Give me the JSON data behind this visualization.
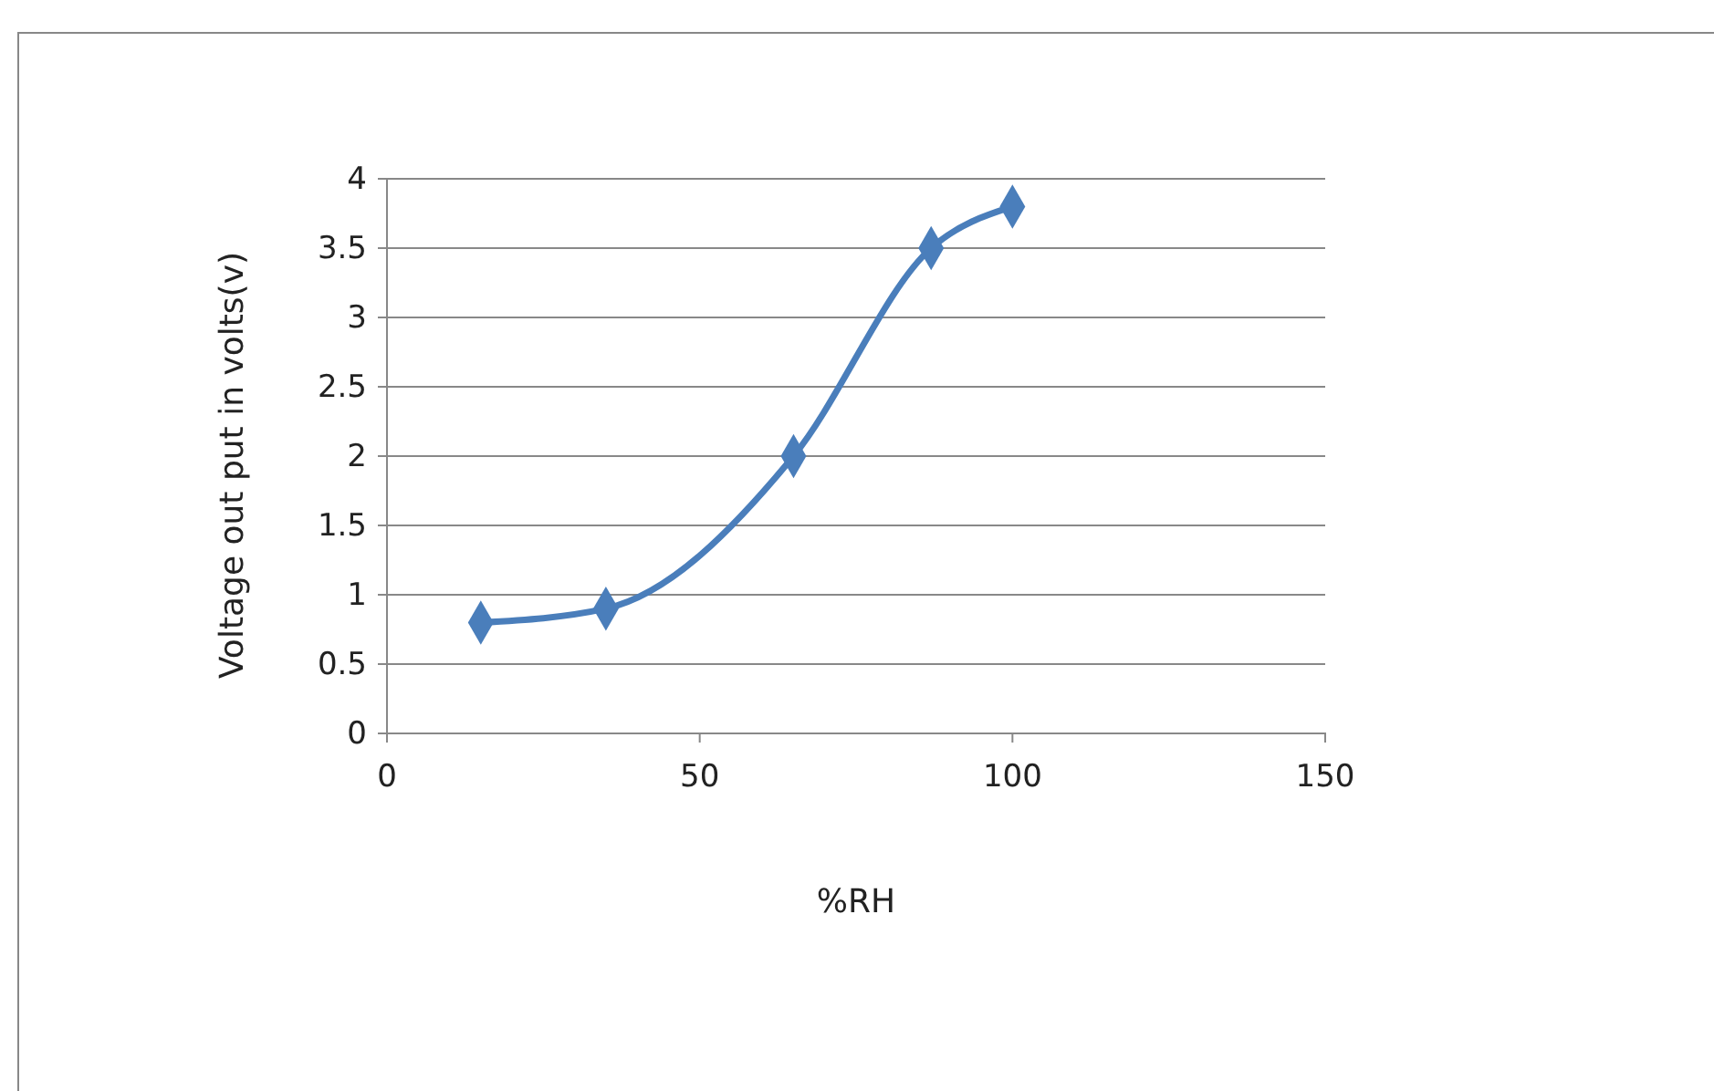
{
  "chart_data": {
    "type": "line",
    "xlabel": "%RH",
    "ylabel": "Voltage out put in volts(v)",
    "x": [
      15,
      35,
      65,
      87,
      100
    ],
    "series": [
      {
        "color": "#4a7ebb",
        "values": [
          0.8,
          0.9,
          2.0,
          3.5,
          3.8
        ]
      }
    ],
    "xlim": [
      0,
      150
    ],
    "xticks": [
      0,
      50,
      100,
      150
    ],
    "ylim": [
      0,
      4
    ],
    "yticks": [
      0,
      0.5,
      1,
      1.5,
      2,
      2.5,
      3,
      3.5,
      4
    ],
    "grid": "y",
    "marker": "diamond",
    "line_style": "solid"
  }
}
